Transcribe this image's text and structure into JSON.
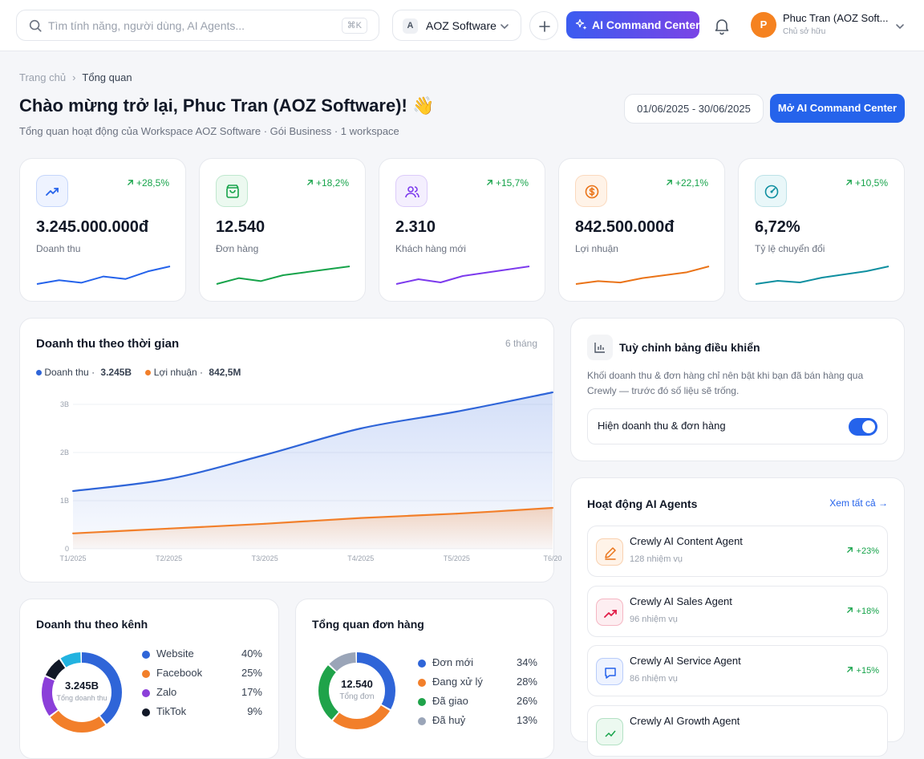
{
  "topbar": {
    "search_placeholder": "Tìm tính năng, người dùng, AI Agents...",
    "search_shortcut": "⌘K",
    "workspace_initial": "A",
    "workspace_name": "AOZ Software",
    "ai_button_label": "AI Command Center",
    "user_initial": "P",
    "user_name": "Phuc Tran (AOZ Soft...",
    "user_role": "Chủ sở hữu"
  },
  "breadcrumb": {
    "home": "Trang chủ",
    "current": "Tổng quan"
  },
  "header": {
    "title": "Chào mừng trở lại, Phuc Tran (AOZ Software)! 👋",
    "subtitle": "Tổng quan hoạt động của Workspace AOZ Software · Gói Business · 1 workspace",
    "date_range": "01/06/2025 - 30/06/2025",
    "open_button": "Mở AI Command Center"
  },
  "kpis": [
    {
      "value": "3.245.000.000đ",
      "label": "Doanh thu",
      "delta": "+28,5%",
      "icon": "trending-up-icon",
      "color": "#2563eb",
      "bg": "#eef3ff",
      "spark": [
        6,
        9,
        7,
        12,
        10,
        16,
        20
      ]
    },
    {
      "value": "12.540",
      "label": "Đơn hàng",
      "delta": "+18,2%",
      "icon": "shopping-bag-icon",
      "color": "#16a34a",
      "bg": "#ecf9f0",
      "spark": [
        7,
        11,
        9,
        13,
        15,
        17,
        19
      ]
    },
    {
      "value": "2.310",
      "label": "Khách hàng mới",
      "delta": "+15,7%",
      "icon": "users-icon",
      "color": "#7c3aed",
      "bg": "#f4effe",
      "spark": [
        8,
        11,
        9,
        13,
        15,
        17,
        19
      ]
    },
    {
      "value": "842.500.000đ",
      "label": "Lợi nhuận",
      "delta": "+22,1%",
      "icon": "dollar-coin-icon",
      "color": "#ea7317",
      "bg": "#fff3e8",
      "spark": [
        6,
        8,
        7,
        10,
        12,
        14,
        18
      ]
    },
    {
      "value": "6,72%",
      "label": "Tỷ lệ chuyển đổi",
      "delta": "+10,5%",
      "icon": "target-gauge-icon",
      "color": "#0e8fa0",
      "bg": "#e9f7f9",
      "spark": [
        8,
        10,
        9,
        12,
        14,
        16,
        19
      ]
    }
  ],
  "revenue_chart": {
    "title": "Doanh thu theo thời gian",
    "range_label": "6 tháng",
    "legend": [
      {
        "name": "Doanh thu",
        "total": "3.245B",
        "color": "#2f65d8"
      },
      {
        "name": "Lợi nhuận",
        "total": "842,5M",
        "color": "#f27f2a"
      }
    ]
  },
  "chart_data": {
    "type": "area",
    "x": [
      "T1/2025",
      "T2/2025",
      "T3/2025",
      "T4/2025",
      "T5/2025",
      "T6/20"
    ],
    "y_ticks": [
      "0",
      "1B",
      "2B",
      "3B"
    ],
    "ylim": [
      0,
      3
    ],
    "series": [
      {
        "name": "Doanh thu",
        "values": [
          1.2,
          1.45,
          1.95,
          2.5,
          2.85,
          3.25
        ]
      },
      {
        "name": "Lợi nhuận",
        "values": [
          0.32,
          0.42,
          0.52,
          0.64,
          0.73,
          0.85
        ]
      }
    ]
  },
  "customize": {
    "title": "Tuỳ chỉnh bảng điều khiển",
    "description_line1": "Khối doanh thu & đơn hàng chỉ nên bật khi bạn đã bán hàng qua",
    "description_line2": "Crewly — trước đó số liệu sẽ trống.",
    "toggle_label": "Hiện doanh thu & đơn hàng",
    "toggle_on": true
  },
  "agents_panel": {
    "title": "Hoạt động AI Agents",
    "see_all": "Xem tất cả →",
    "agents": [
      {
        "name": "Crewly AI Content Agent",
        "tasks": "128 nhiệm vụ",
        "delta": "+23%",
        "icon": "pen-icon",
        "color": "#ea7317",
        "bg": "#fff3e8"
      },
      {
        "name": "Crewly AI Sales Agent",
        "tasks": "96 nhiệm vụ",
        "delta": "+18%",
        "icon": "trending-up-icon",
        "color": "#e11d48",
        "bg": "#fdeef1"
      },
      {
        "name": "Crewly AI Service Agent",
        "tasks": "86 nhiệm vụ",
        "delta": "+15%",
        "icon": "chat-bubble-icon",
        "color": "#2563eb",
        "bg": "#eef3ff"
      },
      {
        "name": "Crewly AI Growth Agent",
        "tasks": "",
        "delta": "",
        "icon": "growth-icon",
        "color": "#16a34a",
        "bg": "#ecf9f0"
      }
    ]
  },
  "channel_revenue": {
    "title": "Doanh thu theo kênh",
    "center_value": "3.245B",
    "center_label": "Tổng doanh thu",
    "items": [
      {
        "name": "Website",
        "pct": "40%",
        "value": 40,
        "color": "#2f65d8"
      },
      {
        "name": "Facebook",
        "pct": "25%",
        "value": 25,
        "color": "#f27f2a"
      },
      {
        "name": "Zalo",
        "pct": "17%",
        "value": 17,
        "color": "#8b3fd9"
      },
      {
        "name": "TikTok",
        "pct": "9%",
        "value": 9,
        "color": "#111827"
      }
    ],
    "other_color": "#22b3e0"
  },
  "orders_overview": {
    "title": "Tổng quan đơn hàng",
    "center_value": "12.540",
    "center_label": "Tổng đơn",
    "items": [
      {
        "name": "Đơn mới",
        "pct": "34%",
        "value": 34,
        "color": "#2f65d8"
      },
      {
        "name": "Đang xử lý",
        "pct": "28%",
        "value": 28,
        "color": "#f27f2a"
      },
      {
        "name": "Đã giao",
        "pct": "26%",
        "value": 26,
        "color": "#1fa34a"
      },
      {
        "name": "Đã huỷ",
        "pct": "13%",
        "value": 13,
        "color": "#9aa5b8"
      }
    ]
  }
}
